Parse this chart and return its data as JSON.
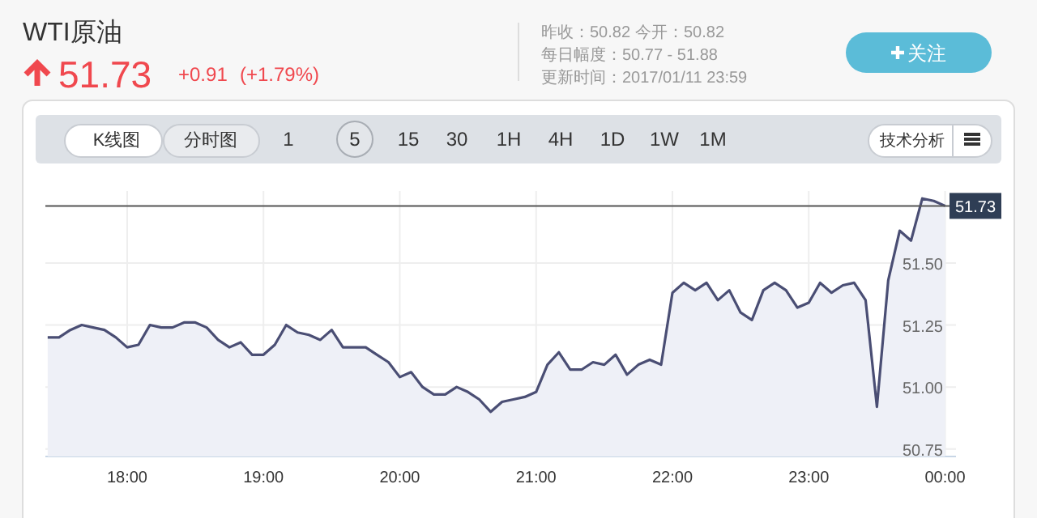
{
  "chart_data": {
    "type": "area",
    "title": "WTI原油",
    "annotations": [
      "51.73",
      "+0.91",
      "(+1.79%)",
      "昨收：50.82",
      "今开：50.82",
      "每日幅度：50.77 - 51.88",
      "更新时间：2017/01/11 23:59",
      "关注",
      "K线图",
      "分时图",
      "1",
      "5",
      "15",
      "30",
      "1H",
      "4H",
      "1D",
      "1W",
      "1M",
      "技术分析"
    ],
    "x": [
      17.417,
      17.5,
      17.583,
      17.667,
      17.75,
      17.833,
      17.917,
      18,
      18.083,
      18.167,
      18.25,
      18.333,
      18.417,
      18.5,
      18.583,
      18.667,
      18.75,
      18.833,
      18.917,
      19,
      19.083,
      19.167,
      19.25,
      19.333,
      19.417,
      19.5,
      19.583,
      19.667,
      19.75,
      19.833,
      19.917,
      20,
      20.083,
      20.167,
      20.25,
      20.333,
      20.417,
      20.5,
      20.583,
      20.667,
      20.75,
      20.833,
      20.917,
      21,
      21.083,
      21.167,
      21.25,
      21.333,
      21.417,
      21.5,
      21.583,
      21.667,
      21.75,
      21.833,
      21.917,
      22,
      22.083,
      22.167,
      22.25,
      22.333,
      22.417,
      22.5,
      22.583,
      22.667,
      22.75,
      22.833,
      22.917,
      23,
      23.083,
      23.167,
      23.25,
      23.333,
      23.417,
      23.5,
      23.583,
      23.667,
      23.75,
      23.833,
      23.917,
      24
    ],
    "series": [
      {
        "color": "#4a4e74",
        "values": [
          51.2,
          51.2,
          51.23,
          51.25,
          51.24,
          51.23,
          51.2,
          51.16,
          51.17,
          51.25,
          51.24,
          51.24,
          51.26,
          51.26,
          51.24,
          51.19,
          51.16,
          51.18,
          51.13,
          51.13,
          51.17,
          51.25,
          51.22,
          51.21,
          51.19,
          51.23,
          51.16,
          51.16,
          51.16,
          51.13,
          51.1,
          51.04,
          51.06,
          51.0,
          50.97,
          50.97,
          51.0,
          50.98,
          50.95,
          50.9,
          50.94,
          50.95,
          50.96,
          50.98,
          51.09,
          51.14,
          51.07,
          51.07,
          51.1,
          51.09,
          51.13,
          51.05,
          51.09,
          51.11,
          51.09,
          51.38,
          51.42,
          51.39,
          51.42,
          51.35,
          51.39,
          51.3,
          51.27,
          51.39,
          51.42,
          51.39,
          51.32,
          51.34,
          51.42,
          51.38,
          51.41,
          51.42,
          51.35,
          50.92,
          51.43,
          51.63,
          51.59,
          51.76,
          51.75,
          51.73
        ]
      }
    ],
    "xlim": [
      17.4,
      24.08
    ],
    "ylim": [
      50.72,
      51.79
    ],
    "xticks": [
      {
        "value": 18,
        "label": "18:00"
      },
      {
        "value": 19,
        "label": "19:00"
      },
      {
        "value": 20,
        "label": "20:00"
      },
      {
        "value": 21,
        "label": "21:00"
      },
      {
        "value": 22,
        "label": "22:00"
      },
      {
        "value": 23,
        "label": "23:00"
      },
      {
        "value": 24,
        "label": "00:00"
      }
    ],
    "yticks": [
      {
        "value": 50.75,
        "label": "50.75"
      },
      {
        "value": 51,
        "label": "51.00"
      },
      {
        "value": 51.25,
        "label": "51.25"
      },
      {
        "value": 51.5,
        "label": "51.50"
      }
    ],
    "ref_lines": [
      {
        "axis": "y",
        "value": 51.73,
        "label": "51.73",
        "color": "#555555"
      }
    ],
    "grid": true
  }
}
